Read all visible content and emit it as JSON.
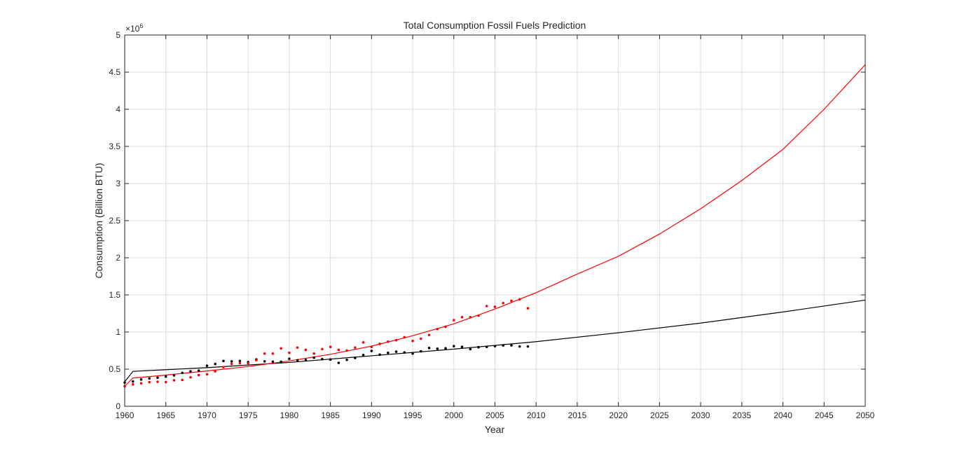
{
  "chart_data": {
    "type": "scatter",
    "title": "Total Consumption Fossil Fuels Prediction",
    "xlabel": "Year",
    "ylabel": "Consumption (Billion BTU)",
    "y_exponent_label": "×10",
    "y_exponent": "6",
    "xlim": [
      1960,
      2050
    ],
    "ylim": [
      0,
      5000000
    ],
    "x_ticks": [
      1960,
      1965,
      1970,
      1975,
      1980,
      1985,
      1990,
      1995,
      2000,
      2005,
      2010,
      2015,
      2020,
      2025,
      2030,
      2035,
      2040,
      2045,
      2050
    ],
    "y_ticks": [
      0,
      500000,
      1000000,
      1500000,
      2000000,
      2500000,
      3000000,
      3500000,
      4000000,
      4500000,
      5000000
    ],
    "y_tick_labels": [
      "0",
      "0.5",
      "1",
      "1.5",
      "2",
      "2.5",
      "3",
      "3.5",
      "4",
      "4.5",
      "5"
    ],
    "grid": true,
    "box": true,
    "colors": {
      "black": "#000000",
      "red": "#ff0000",
      "grid": "#dcdcdc",
      "axis": "#262626"
    },
    "series": [
      {
        "color": "#000000",
        "kind": "points",
        "x": [
          1960,
          1961,
          1962,
          1963,
          1964,
          1965,
          1966,
          1967,
          1968,
          1969,
          1970,
          1971,
          1972,
          1973,
          1974,
          1975,
          1976,
          1977,
          1978,
          1979,
          1980,
          1981,
          1982,
          1983,
          1984,
          1985,
          1986,
          1987,
          1988,
          1989,
          1990,
          1991,
          1992,
          1993,
          1994,
          1995,
          1996,
          1997,
          1998,
          1999,
          2000,
          2001,
          2002,
          2003,
          2004,
          2005,
          2006,
          2007,
          2008,
          2009
        ],
        "y": [
          320000,
          335000,
          360000,
          375000,
          385000,
          400000,
          415000,
          450000,
          470000,
          480000,
          545000,
          570000,
          610000,
          605000,
          610000,
          595000,
          630000,
          605000,
          600000,
          600000,
          640000,
          620000,
          625000,
          655000,
          635000,
          630000,
          585000,
          625000,
          650000,
          690000,
          745000,
          695000,
          720000,
          735000,
          725000,
          710000,
          740000,
          785000,
          775000,
          780000,
          810000,
          800000,
          770000,
          795000,
          800000,
          810000,
          820000,
          820000,
          805000,
          805000
        ]
      },
      {
        "color": "#ff0000",
        "kind": "points",
        "x": [
          1960,
          1961,
          1962,
          1963,
          1964,
          1965,
          1966,
          1967,
          1968,
          1969,
          1970,
          1971,
          1972,
          1973,
          1974,
          1975,
          1976,
          1977,
          1978,
          1979,
          1980,
          1981,
          1982,
          1983,
          1984,
          1985,
          1986,
          1987,
          1988,
          1989,
          1990,
          1991,
          1992,
          1993,
          1994,
          1995,
          1996,
          1997,
          1998,
          1999,
          2000,
          2001,
          2002,
          2003,
          2004,
          2005,
          2006,
          2007,
          2008,
          2009
        ],
        "y": [
          270000,
          295000,
          310000,
          325000,
          330000,
          325000,
          350000,
          355000,
          390000,
          420000,
          430000,
          470000,
          525000,
          570000,
          580000,
          580000,
          620000,
          710000,
          710000,
          780000,
          720000,
          790000,
          760000,
          710000,
          770000,
          800000,
          760000,
          750000,
          790000,
          860000,
          800000,
          840000,
          870000,
          890000,
          930000,
          880000,
          910000,
          960000,
          1040000,
          1070000,
          1160000,
          1200000,
          1200000,
          1220000,
          1350000,
          1340000,
          1390000,
          1420000,
          1440000,
          1320000
        ]
      },
      {
        "color": "#000000",
        "kind": "fit",
        "x": [
          1960,
          1961,
          1970,
          1980,
          1990,
          2000,
          2010,
          2020,
          2030,
          2040,
          2050
        ],
        "y": [
          330000,
          470000,
          520000,
          590000,
          680000,
          770000,
          870000,
          990000,
          1120000,
          1270000,
          1430000
        ]
      },
      {
        "color": "#ff0000",
        "kind": "fit",
        "x": [
          1960,
          1961,
          1965,
          1970,
          1975,
          1980,
          1985,
          1990,
          1995,
          2000,
          2005,
          2010,
          2015,
          2020,
          2025,
          2030,
          2035,
          2040,
          2045,
          2050
        ],
        "y": [
          270000,
          380000,
          420000,
          475000,
          535000,
          610000,
          700000,
          810000,
          950000,
          1110000,
          1310000,
          1530000,
          1780000,
          2020000,
          2320000,
          2660000,
          3040000,
          3460000,
          4000000,
          4600000
        ]
      }
    ]
  }
}
